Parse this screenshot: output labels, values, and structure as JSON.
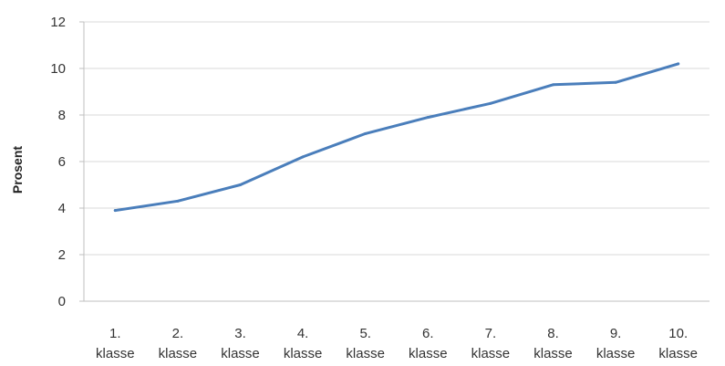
{
  "chart_data": {
    "type": "line",
    "title": "",
    "xlabel": "",
    "ylabel": "Prosent",
    "ylim": [
      0,
      12
    ],
    "yticks": [
      0,
      2,
      4,
      6,
      8,
      10,
      12
    ],
    "grid": true,
    "legend": "none",
    "categories": [
      [
        "1.",
        "klasse"
      ],
      [
        "2.",
        "klasse"
      ],
      [
        "3.",
        "klasse"
      ],
      [
        "4.",
        "klasse"
      ],
      [
        "5.",
        "klasse"
      ],
      [
        "6.",
        "klasse"
      ],
      [
        "7.",
        "klasse"
      ],
      [
        "8.",
        "klasse"
      ],
      [
        "9.",
        "klasse"
      ],
      [
        "10.",
        "klasse"
      ]
    ],
    "series": [
      {
        "values": [
          3.9,
          4.3,
          5.0,
          6.2,
          7.2,
          7.9,
          8.5,
          9.3,
          9.4,
          10.2
        ],
        "color": "#4a7ebb"
      }
    ]
  }
}
